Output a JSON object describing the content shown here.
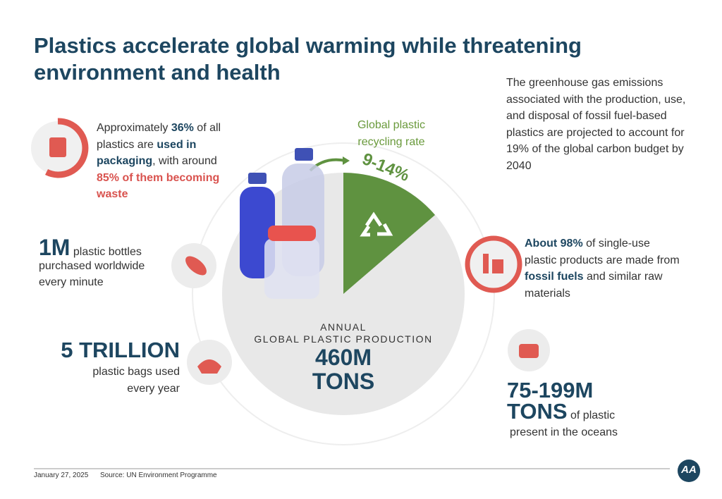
{
  "title": "Plastics accelerate global warming while threatening environment and health",
  "emissions": "The greenhouse gas emissions associated with the production, use, and disposal of fossil fuel-based plastics are projected to account for 19% of the global carbon budget by 2040",
  "packaging": {
    "segments": [
      {
        "text": "Approximately "
      },
      {
        "text": "36%",
        "bold": true
      },
      {
        "text": " of all plastics are "
      },
      {
        "text": "used in packaging",
        "bold": true
      },
      {
        "text": ", with around "
      },
      {
        "text": "85% of them becoming waste",
        "bold": true,
        "red": true
      }
    ]
  },
  "recycling": {
    "label": "Global plastic recycling rate",
    "value": "9-14%"
  },
  "production": {
    "line1": "ANNUAL",
    "line2": "GLOBAL PLASTIC PRODUCTION",
    "amount": "460M",
    "unit": "TONS"
  },
  "bottles": {
    "amount": "1M",
    "text": "plastic bottles",
    "rest": "purchased worldwide every minute"
  },
  "fossil": {
    "segments": [
      {
        "text": "About 98%",
        "bold": true
      },
      {
        "text": " of single-use plastic products are made from "
      },
      {
        "text": "fossil fuels",
        "bold": true
      },
      {
        "text": " and similar raw materials"
      }
    ]
  },
  "bags": {
    "amount": "5 TRILLION",
    "text": "plastic bags used every year"
  },
  "oceans": {
    "amount": "75-199M",
    "unit": "TONS",
    "text": "of plastic",
    "rest": "present in the oceans"
  },
  "footer": {
    "date": "January 27, 2025",
    "source": "Source: UN Environment Programme",
    "logo": "AA"
  }
}
